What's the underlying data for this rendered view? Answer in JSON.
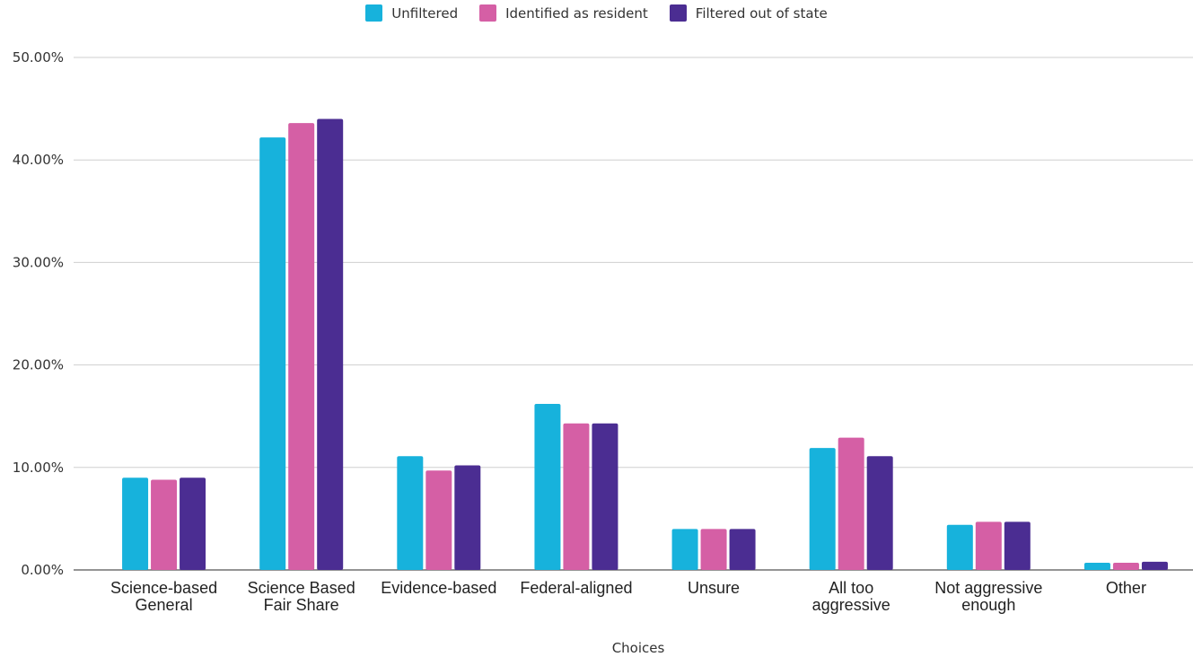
{
  "chart_data": {
    "type": "bar",
    "xlabel": "Choices",
    "ylabel": "",
    "ylim": [
      0,
      50
    ],
    "yticks": [
      "0.00%",
      "10.00%",
      "20.00%",
      "30.00%",
      "40.00%",
      "50.00%"
    ],
    "grid": true,
    "legend": "top-center",
    "categories": [
      [
        "Science-based",
        "General"
      ],
      [
        "Science Based",
        "Fair Share"
      ],
      [
        "Evidence-based"
      ],
      [
        "Federal-aligned"
      ],
      [
        "Unsure"
      ],
      [
        "All too",
        "aggressive"
      ],
      [
        "Not aggressive",
        "enough"
      ],
      [
        "Other"
      ]
    ],
    "series": [
      {
        "name": "Unfiltered",
        "color": "#17b2dc",
        "values": [
          9.0,
          42.2,
          11.1,
          16.2,
          4.0,
          11.9,
          4.4,
          0.7
        ]
      },
      {
        "name": "Identified as resident",
        "color": "#d55fa5",
        "values": [
          8.8,
          43.6,
          9.7,
          14.3,
          4.0,
          12.9,
          4.7,
          0.7
        ]
      },
      {
        "name": "Filtered out of state",
        "color": "#4b2d92",
        "values": [
          9.0,
          44.0,
          10.2,
          14.3,
          4.0,
          11.1,
          4.7,
          0.8
        ]
      }
    ]
  }
}
